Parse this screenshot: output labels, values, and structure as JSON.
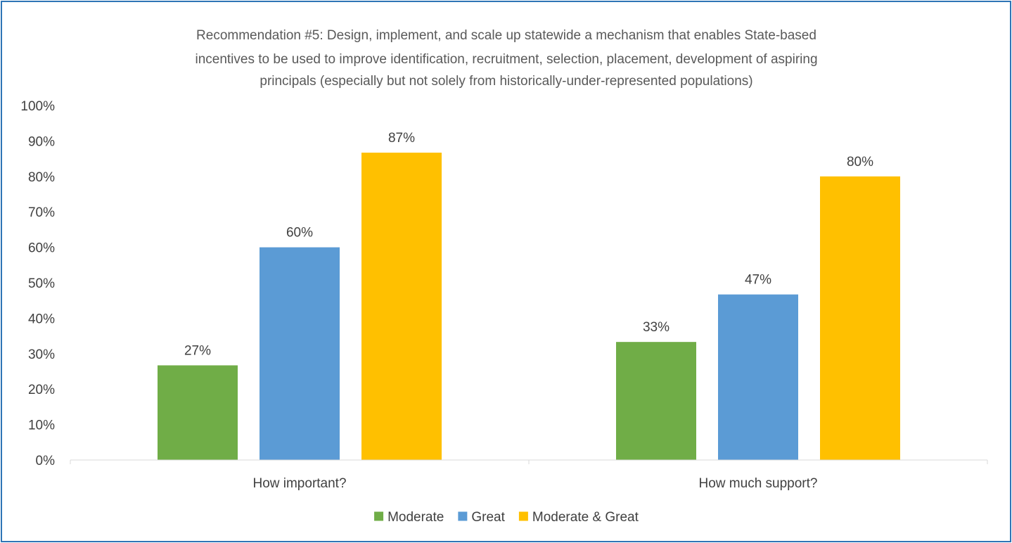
{
  "chart_data": {
    "type": "bar",
    "title_lines": [
      "Recommendation #5:  Design, implement, and scale up statewide a mechanism that enables State-based",
      "incentives to be used to improve identification, recruitment, selection, placement, development of aspiring",
      "principals (especially but not solely from historically-under-represented populations)"
    ],
    "categories": [
      "How important?",
      "How much support?"
    ],
    "series": [
      {
        "name": "Moderate",
        "color": "#70AD47",
        "values": [
          26.7,
          33.3
        ],
        "labels": [
          "27%",
          "33%"
        ]
      },
      {
        "name": "Great",
        "color": "#5B9BD5",
        "values": [
          60.0,
          46.7
        ],
        "labels": [
          "60%",
          "47%"
        ]
      },
      {
        "name": "Moderate & Great",
        "color": "#FFC000",
        "values": [
          86.7,
          80.0
        ],
        "labels": [
          "87%",
          "80%"
        ]
      }
    ],
    "ylim": [
      0,
      100
    ],
    "yticks": [
      "0%",
      "10%",
      "20%",
      "30%",
      "40%",
      "50%",
      "60%",
      "70%",
      "80%",
      "90%",
      "100%"
    ],
    "grid": false,
    "legend_position": "bottom"
  }
}
